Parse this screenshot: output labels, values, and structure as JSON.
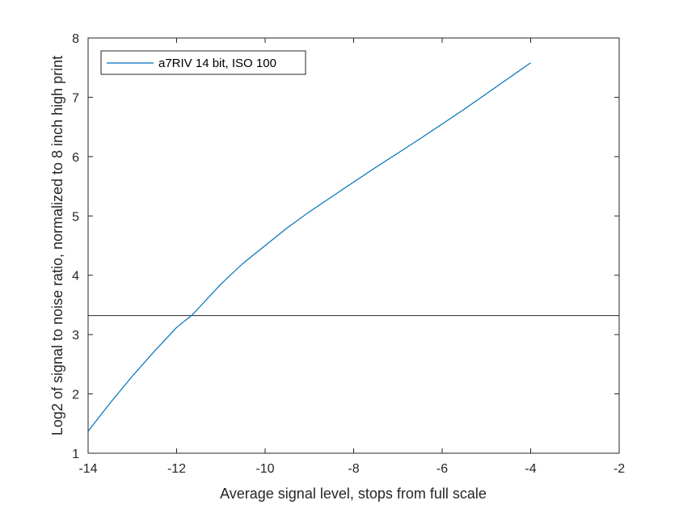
{
  "chart_data": {
    "type": "line",
    "title": "",
    "xlabel": "Average signal level, stops from full scale",
    "ylabel": "Log2 of signal to noise ratio, normalized to 8 inch high print",
    "xlim": [
      -14,
      -2
    ],
    "ylim": [
      1,
      8
    ],
    "xticks": [
      -14,
      -12,
      -10,
      -8,
      -6,
      -4,
      -2
    ],
    "yticks": [
      1,
      2,
      3,
      4,
      5,
      6,
      7,
      8
    ],
    "grid": false,
    "legend_position": "top-left",
    "series": [
      {
        "name": "a7RIV 14 bit, ISO 100",
        "color": "#0072BD",
        "x": [
          -14.0,
          -13.5,
          -13.0,
          -12.5,
          -12.0,
          -11.65,
          -11.5,
          -11.0,
          -10.5,
          -10.0,
          -9.5,
          -9.0,
          -8.5,
          -8.0,
          -7.5,
          -7.0,
          -6.5,
          -6.0,
          -5.5,
          -5.0,
          -4.5,
          -4.0
        ],
        "y": [
          1.37,
          1.85,
          2.3,
          2.72,
          3.12,
          3.33,
          3.45,
          3.85,
          4.2,
          4.5,
          4.8,
          5.07,
          5.32,
          5.57,
          5.82,
          6.06,
          6.3,
          6.55,
          6.8,
          7.06,
          7.32,
          7.58
        ]
      }
    ],
    "reference_line": {
      "y": 3.32,
      "color": "#262626"
    }
  }
}
